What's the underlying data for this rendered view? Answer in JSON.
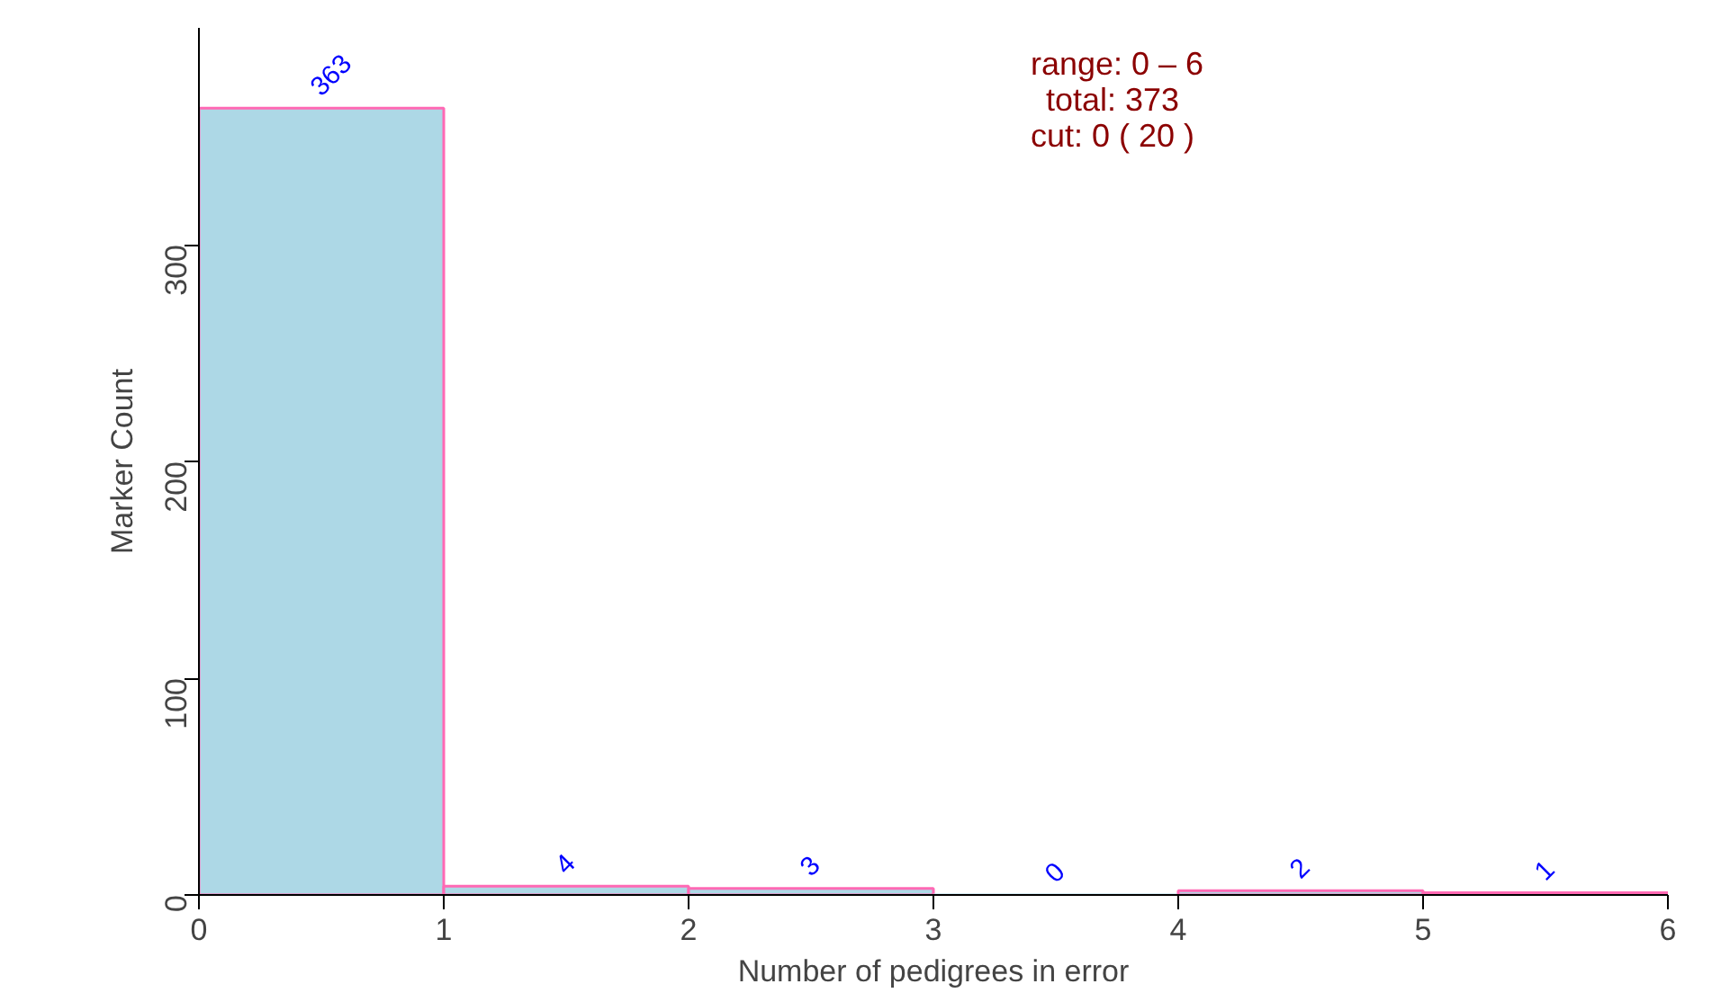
{
  "chart_data": {
    "type": "histogram",
    "xlabel": "Number of pedigrees in error",
    "ylabel": "Marker Count",
    "bins": [
      0,
      1,
      2,
      3,
      4,
      5,
      6
    ],
    "values": [
      363,
      4,
      3,
      0,
      2,
      1
    ],
    "color": "#add8e6",
    "data_labels": true,
    "grid": false,
    "xlim": [
      0,
      6
    ],
    "ylim": [
      0,
      400
    ],
    "xticks": [
      0,
      1,
      2,
      3,
      4,
      5,
      6
    ],
    "yticks": [
      0,
      100,
      200,
      300
    ],
    "annotations": [
      "range: 0 – 6",
      "total:  373",
      "cut:  0 ( 20 )"
    ]
  }
}
